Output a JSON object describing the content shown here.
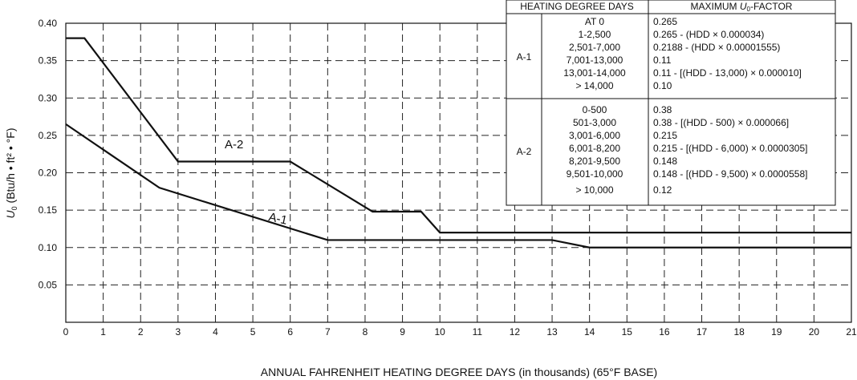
{
  "chart_data": {
    "type": "line",
    "xlabel": "ANNUAL FAHRENHEIT HEATING DEGREE DAYS (in thousands) (65°F BASE)",
    "ylabel_main": "U",
    "ylabel_sub": "0",
    "ylabel_units": " (Btu/h • ft² • °F)",
    "xlim": [
      0,
      21
    ],
    "ylim": [
      0,
      0.4
    ],
    "xticks": [
      "0",
      "1",
      "2",
      "3",
      "4",
      "5",
      "6",
      "7",
      "8",
      "9",
      "10",
      "11",
      "12",
      "13",
      "14",
      "15",
      "16",
      "17",
      "18",
      "19",
      "20",
      "21"
    ],
    "yticks": [
      "0.05",
      "0.10",
      "0.15",
      "0.20",
      "0.25",
      "0.30",
      "0.35",
      "0.40"
    ],
    "grid": "dashed",
    "series": [
      {
        "name": "A-1",
        "x": [
          0,
          2.5,
          7,
          13,
          14,
          21
        ],
        "y": [
          0.265,
          0.18,
          0.11,
          0.11,
          0.1,
          0.1
        ]
      },
      {
        "name": "A-2",
        "x": [
          0,
          0.5,
          3,
          6,
          8.2,
          9.5,
          10,
          21
        ],
        "y": [
          0.38,
          0.38,
          0.215,
          0.215,
          0.148,
          0.148,
          0.12,
          0.12
        ]
      }
    ]
  },
  "table": {
    "col1_header": "HEATING DEGREE DAYS",
    "col2_header_prefix": "MAXIMUM ",
    "col2_header_u": "U",
    "col2_header_sub": "0",
    "col2_header_suffix": "-FACTOR",
    "groups": [
      {
        "name": "A-1",
        "hdd": [
          "AT 0",
          "1-2,500",
          "2,501-7,000",
          "7,001-13,000",
          "13,001-14,000",
          "> 14,000"
        ],
        "factor": [
          "0.265",
          "0.265 - (HDD × 0.000034)",
          "0.2188 - (HDD × 0.00001555)",
          "0.11",
          "0.11 - [(HDD - 13,000) × 0.000010]",
          "0.10"
        ]
      },
      {
        "name": "A-2",
        "hdd": [
          "0-500",
          "501-3,000",
          "3,001-6,000",
          "6,001-8,200",
          "8,201-9,500",
          "9,501-10,000",
          "> 10,000"
        ],
        "factor": [
          "0.38",
          "0.38 - [(HDD - 500) × 0.000066]",
          "0.215",
          "0.215 - [(HDD - 6,000) × 0.0000305]",
          "0.148",
          "0.148 - [(HDD - 9,500) × 0.0000558]",
          "0.12"
        ]
      }
    ]
  }
}
